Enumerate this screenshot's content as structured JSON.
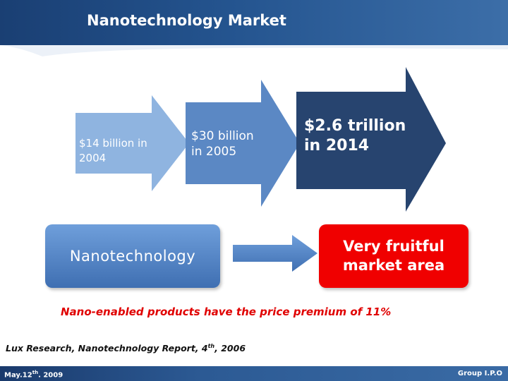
{
  "slide": {
    "title": "Nanotechnology Market",
    "arrows": [
      {
        "label": "$14 billion in\n2004",
        "color": "#8fb4e0"
      },
      {
        "label": "$30 billion\nin 2005",
        "color": "#5b88c4"
      },
      {
        "label": "$2.6 trillion\nin 2014",
        "color": "#27446f"
      }
    ],
    "left_box": {
      "label": "Nanotechnology",
      "color": "#4f80c0"
    },
    "right_box": {
      "label": "Very fruitful\nmarket area",
      "color": "#f00000"
    },
    "premium_note": "Nano-enabled products have the price premium of 11%",
    "source": {
      "text": "Lux Research, Nanotechnology Report, 4",
      "superscript": "th",
      "suffix": ", 2006"
    },
    "footer": {
      "date_prefix": "May.12",
      "date_superscript": "th",
      "date_suffix": ". 2009",
      "group": "Group I.P.O"
    },
    "colors": {
      "header": "#24548f",
      "footer": "#2c5a94",
      "accent_red": "#e00000"
    }
  }
}
